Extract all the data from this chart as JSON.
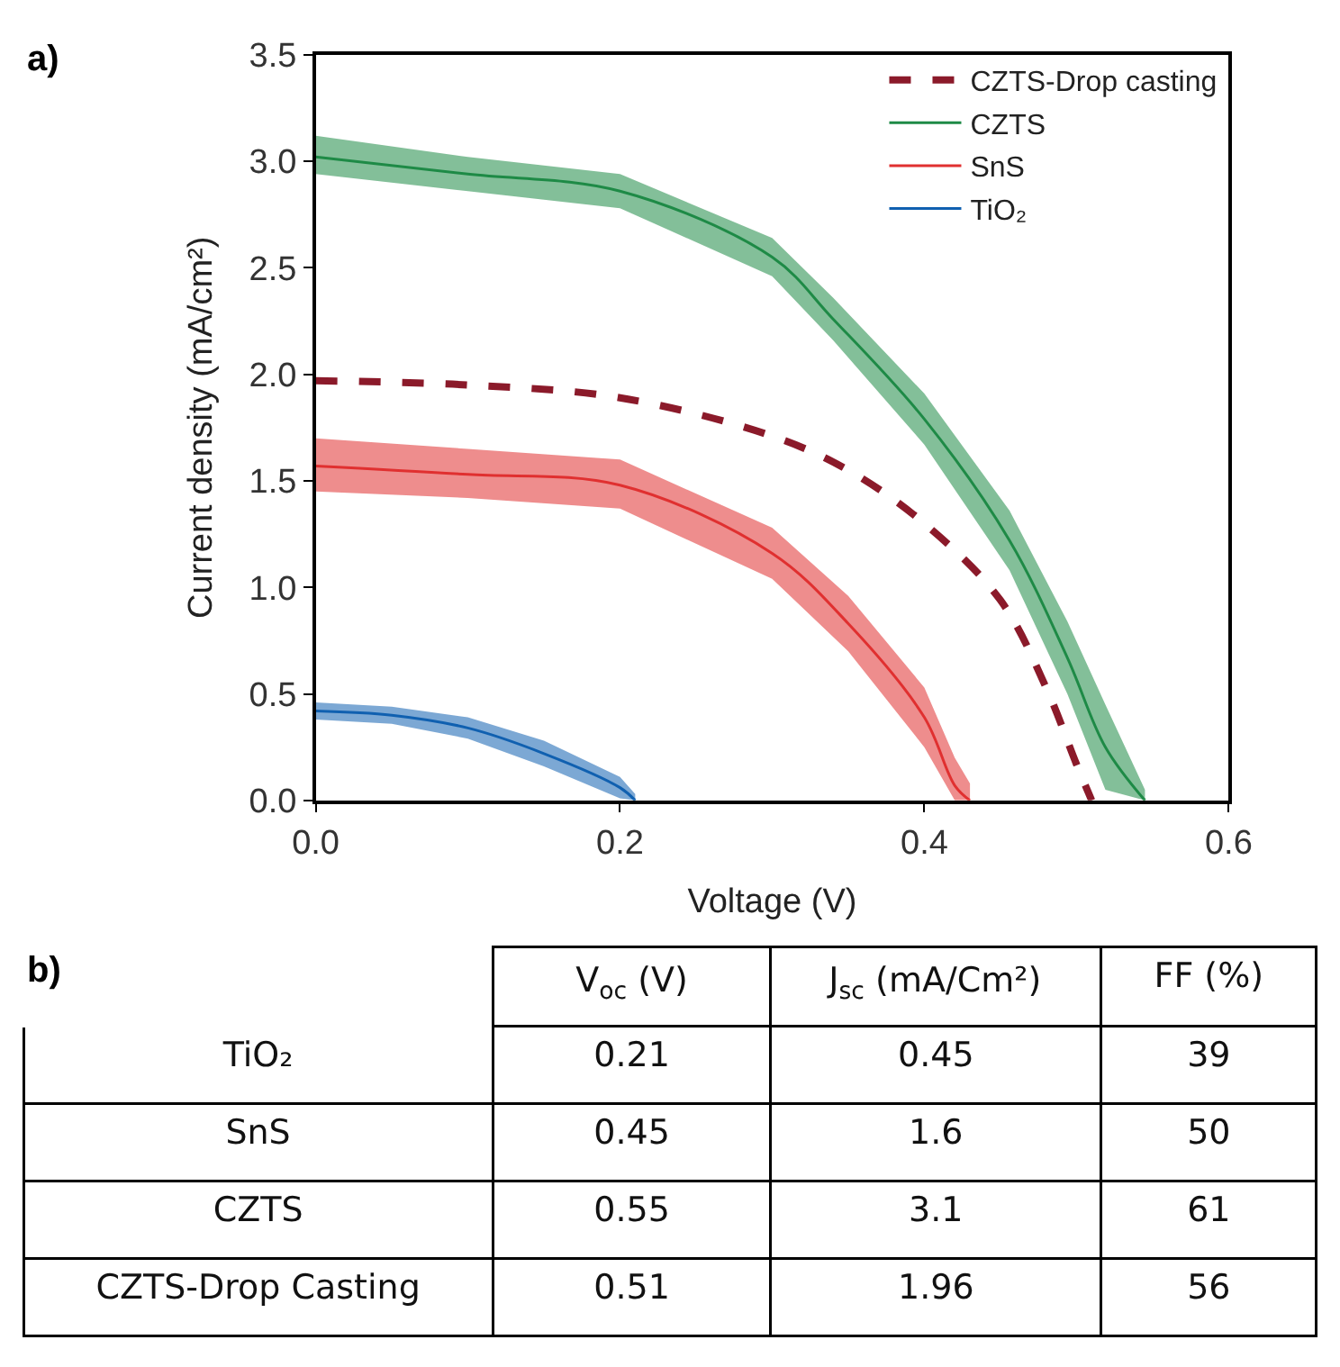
{
  "chart_data": [
    {
      "type": "line",
      "title": "a)",
      "xlabel": "Voltage (V)",
      "ylabel": "Current density (mA/cm²)",
      "xlim": [
        0,
        0.6
      ],
      "xticks": [
        {
          "value": 0,
          "label": "0.0"
        },
        {
          "value": 0.2,
          "label": "0.2"
        },
        {
          "value": 0.4,
          "label": "0.4"
        },
        {
          "value": 0.6,
          "label": "0.6"
        }
      ],
      "ylim": [
        0,
        3.5
      ],
      "yticks": [
        {
          "value": 0,
          "label": "0.0"
        },
        0.5,
        {
          "value": 1,
          "label": "1.0"
        },
        1.5,
        {
          "value": 2,
          "label": "2.0"
        },
        2.5,
        {
          "value": 3,
          "label": "3.0"
        },
        3.5
      ],
      "legend": "top right",
      "marker": "none",
      "series": [
        {
          "name": "CZTS-Drop casting",
          "color": "#8b1a2a",
          "line_style": "dashed",
          "x": [
            0,
            0.1,
            0.2,
            0.3,
            0.35,
            0.4,
            0.45,
            0.48,
            0.5,
            0.51
          ],
          "values": [
            1.97,
            1.95,
            1.89,
            1.71,
            1.55,
            1.3,
            0.94,
            0.53,
            0.17,
            0
          ]
        },
        {
          "name": "CZTS",
          "color": "#1e8a46",
          "line_style": "solid",
          "x": [
            0,
            0.1,
            0.2,
            0.3,
            0.34,
            0.4,
            0.456,
            0.494,
            0.519,
            0.545
          ],
          "values": [
            3.02,
            2.94,
            2.86,
            2.55,
            2.26,
            1.79,
            1.22,
            0.67,
            0.25,
            0
          ],
          "lower": [
            2.94,
            2.86,
            2.78,
            2.46,
            2.16,
            1.67,
            1.08,
            0.5,
            0.05,
            0
          ],
          "upper": [
            3.12,
            3.02,
            2.94,
            2.64,
            2.36,
            1.91,
            1.36,
            0.84,
            0.45,
            0.05
          ]
        },
        {
          "name": "SnS",
          "color": "#e03030",
          "line_style": "solid",
          "x": [
            0,
            0.1,
            0.2,
            0.3,
            0.35,
            0.4,
            0.42,
            0.43
          ],
          "values": [
            1.57,
            1.53,
            1.48,
            1.16,
            0.83,
            0.39,
            0.07,
            0
          ],
          "lower": [
            1.45,
            1.42,
            1.37,
            1.04,
            0.7,
            0.25,
            0,
            0
          ],
          "upper": [
            1.7,
            1.65,
            1.6,
            1.28,
            0.96,
            0.53,
            0.2,
            0.08
          ]
        },
        {
          "name": "TiO₂",
          "color": "#1060b0",
          "line_style": "solid",
          "x": [
            0,
            0.05,
            0.1,
            0.15,
            0.2,
            0.21
          ],
          "values": [
            0.42,
            0.4,
            0.34,
            0.22,
            0.06,
            0
          ],
          "lower": [
            0.38,
            0.36,
            0.29,
            0.16,
            0.01,
            0
          ],
          "upper": [
            0.46,
            0.44,
            0.39,
            0.28,
            0.11,
            0.03
          ]
        }
      ]
    },
    {
      "type": "other",
      "title": "b)",
      "categories": [
        "V$_{oc}$ (V)",
        "J$_{sc}$ (mA/Cm²)",
        "FF (%)"
      ],
      "y_categories": [
        "TiO₂",
        "SnS",
        "CZTS",
        "CZTS-Drop Casting"
      ],
      "cell_labels": [
        [
          "0.21",
          "0.45",
          "39"
        ],
        [
          "0.45",
          "1.6",
          "50"
        ],
        [
          "0.55",
          "3.1",
          "61"
        ],
        [
          "0.51",
          "1.96",
          "56"
        ]
      ]
    }
  ]
}
